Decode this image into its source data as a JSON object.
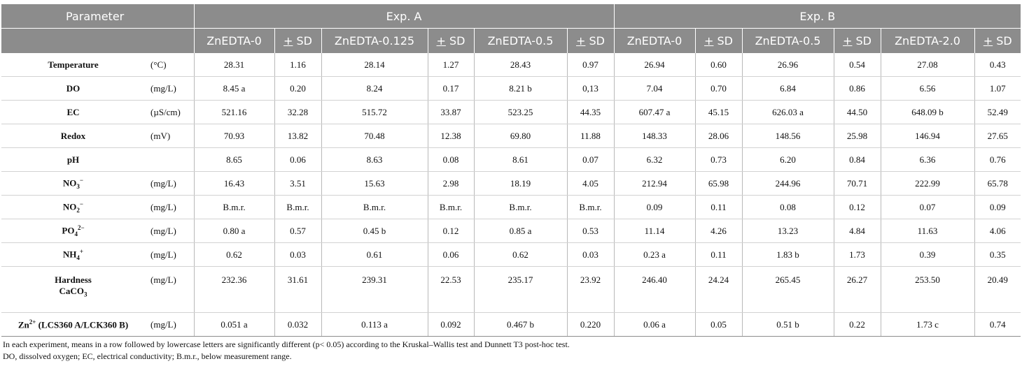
{
  "header": {
    "parameter": "Parameter",
    "exp_a": "Exp. A",
    "exp_b": "Exp. B",
    "sd_pm": "+",
    "sd_label": " SD",
    "columns": [
      "ZnEDTA-0",
      "ZnEDTA-0.125",
      "ZnEDTA-0.5",
      "ZnEDTA-0",
      "ZnEDTA-0.5",
      "ZnEDTA-2.0"
    ]
  },
  "rows": [
    {
      "param": "Temperature",
      "unit": "(°C)",
      "values": [
        "28.31",
        "1.16",
        "28.14",
        "1.27",
        "28.43",
        "0.97",
        "26.94",
        "0.60",
        "26.96",
        "0.54",
        "27.08",
        "0.43"
      ]
    },
    {
      "param": "DO",
      "unit": "(mg/L)",
      "values": [
        "8.45 a",
        "0.20",
        "8.24",
        "0.17",
        "8.21 b",
        "0,13",
        "7.04",
        "0.70",
        "6.84",
        "0.86",
        "6.56",
        "1.07"
      ]
    },
    {
      "param": "EC",
      "unit": "(µS/cm)",
      "values": [
        "521.16",
        "32.28",
        "515.72",
        "33.87",
        "523.25",
        "44.35",
        "607.47 a",
        "45.15",
        "626.03 a",
        "44.50",
        "648.09 b",
        "52.49"
      ]
    },
    {
      "param": "Redox",
      "unit": "(mV)",
      "values": [
        "70.93",
        "13.82",
        "70.48",
        "12.38",
        "69.80",
        "11.88",
        "148.33",
        "28.06",
        "148.56",
        "25.98",
        "146.94",
        "27.65"
      ]
    },
    {
      "param": "pH",
      "unit": "",
      "values": [
        "8.65",
        "0.06",
        "8.63",
        "0.08",
        "8.61",
        "0.07",
        "6.32",
        "0.73",
        "6.20",
        "0.84",
        "6.36",
        "0.76"
      ]
    },
    {
      "param": "NO",
      "sub": "3",
      "sup": "−",
      "unit": "(mg/L)",
      "values": [
        "16.43",
        "3.51",
        "15.63",
        "2.98",
        "18.19",
        "4.05",
        "212.94",
        "65.98",
        "244.96",
        "70.71",
        "222.99",
        "65.78"
      ]
    },
    {
      "param": "NO",
      "sub": "2",
      "sup": "−",
      "unit": "(mg/L)",
      "values": [
        "B.m.r.",
        "B.m.r.",
        "B.m.r.",
        "B.m.r.",
        "B.m.r.",
        "B.m.r.",
        "0.09",
        "0.11",
        "0.08",
        "0.12",
        "0.07",
        "0.09"
      ]
    },
    {
      "param": "PO",
      "sub": "4",
      "sup": "2−",
      "unit": "(mg/L)",
      "values": [
        "0.80 a",
        "0.57",
        "0.45 b",
        "0.12",
        "0.85 a",
        "0.53",
        "11.14",
        "4.26",
        "13.23",
        "4.84",
        "11.63",
        "4.06"
      ]
    },
    {
      "param": "NH",
      "sub": "4",
      "sup": "+",
      "unit": "(mg/L)",
      "values": [
        "0.62",
        "0.03",
        "0.61",
        "0.06",
        "0.62",
        "0.03",
        "0.23 a",
        "0.11",
        "1.83 b",
        "1.73",
        "0.39",
        "0.35"
      ]
    },
    {
      "param": "Hardness",
      "param2": "CaCO",
      "sub2": "3",
      "unit": "(mg/L)",
      "tall": true,
      "values": [
        "232.36",
        "31.61",
        "239.31",
        "22.53",
        "235.17",
        "23.92",
        "246.40",
        "24.24",
        "265.45",
        "26.27",
        "253.50",
        "20.49"
      ]
    },
    {
      "param": "Zn",
      "sup": "2+",
      "param_suffix": " (LCS360 A/LCK360 B)",
      "unit": "(mg/L)",
      "values": [
        "0.051 a",
        "0.032",
        "0.113 a",
        "0.092",
        "0.467 b",
        "0.220",
        "0.06 a",
        "0.05",
        "0.51 b",
        "0.22",
        "1.73 c",
        "0.74"
      ]
    }
  ],
  "footnotes": [
    "In each experiment, means in a row followed by lowercase letters are significantly different (p< 0.05) according to the Kruskal–Wallis test and Dunnett T3 post-hoc test.",
    "DO, dissolved oxygen; EC, electrical conductivity; B.m.r., below measurement range."
  ]
}
